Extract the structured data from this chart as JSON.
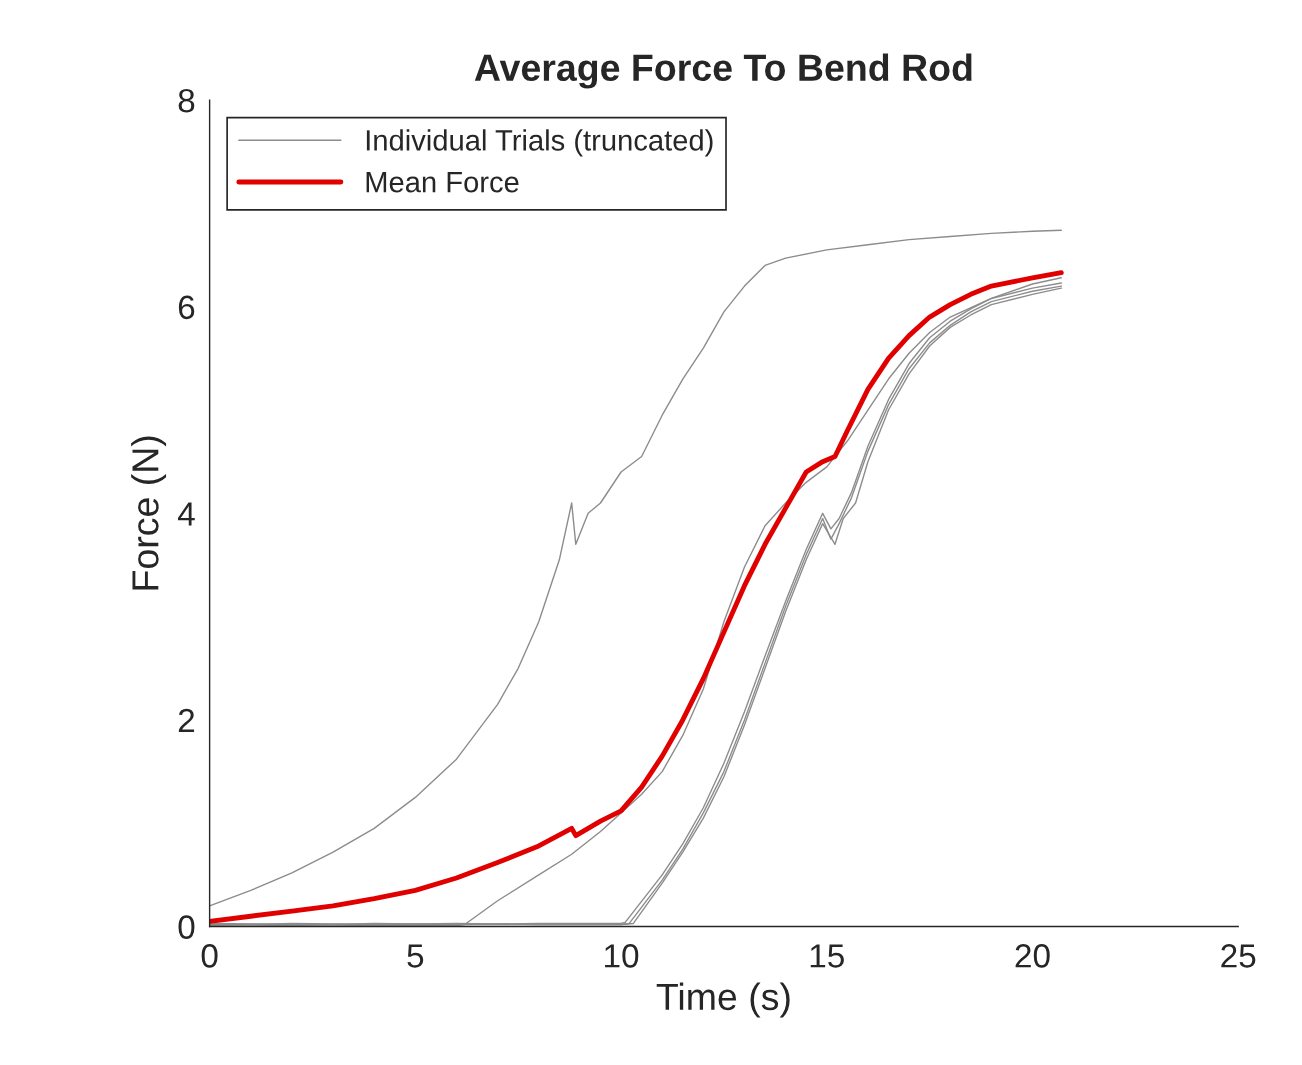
{
  "chart_data": {
    "type": "line",
    "title": "Average Force To Bend Rod",
    "xlabel": "Time (s)",
    "ylabel": "Force (N)",
    "xlim": [
      0,
      25
    ],
    "ylim": [
      0,
      8
    ],
    "xticks": [
      0,
      5,
      10,
      15,
      20,
      25
    ],
    "yticks": [
      0,
      2,
      4,
      6,
      8
    ],
    "grid": false,
    "legend": "top left",
    "marker": "none",
    "line_style": "solid",
    "series": [
      {
        "name": "Individual Trials (truncated)",
        "color": "#8c8c8c",
        "x": [
          0,
          1,
          2,
          3,
          4,
          5,
          6,
          7,
          7.5,
          8,
          8.5,
          8.8,
          8.9,
          9.2,
          9.5,
          10,
          10.5,
          11,
          11.5,
          12,
          12.5,
          13,
          13.5,
          14,
          15,
          16,
          17,
          18,
          19,
          20,
          20.7
        ],
        "values": [
          0.2,
          0.35,
          0.52,
          0.72,
          0.95,
          1.25,
          1.62,
          2.15,
          2.5,
          2.95,
          3.55,
          4.1,
          3.7,
          4.0,
          4.1,
          4.4,
          4.55,
          4.95,
          5.3,
          5.6,
          5.95,
          6.2,
          6.4,
          6.47,
          6.55,
          6.6,
          6.65,
          6.68,
          6.71,
          6.73,
          6.74
        ]
      },
      {
        "color": "#8c8c8c",
        "x": [
          0,
          2,
          4,
          6,
          6.2,
          7,
          8,
          8.8,
          9.5,
          10,
          10.5,
          11,
          11.5,
          12,
          12.5,
          13,
          13.5,
          14,
          14.5,
          15,
          15.5,
          16,
          16.5,
          17,
          17.5,
          18,
          19,
          20,
          20.7
        ],
        "values": [
          0.02,
          0.02,
          0.01,
          0.01,
          0.02,
          0.25,
          0.5,
          0.7,
          0.92,
          1.1,
          1.28,
          1.5,
          1.85,
          2.3,
          2.95,
          3.48,
          3.88,
          4.1,
          4.3,
          4.45,
          4.7,
          5.0,
          5.3,
          5.55,
          5.75,
          5.9,
          6.08,
          6.22,
          6.28
        ]
      },
      {
        "color": "#8c8c8c",
        "x": [
          0,
          2,
          4,
          6,
          8,
          10,
          10.2,
          11,
          11.5,
          12,
          12.5,
          13,
          13.5,
          14,
          14.5,
          14.9,
          15.1,
          15.3,
          15.6,
          16,
          16.5,
          17,
          17.5,
          18,
          18.5,
          19,
          20,
          20.7
        ],
        "values": [
          0.03,
          0.02,
          0.02,
          0.03,
          0.02,
          0.02,
          0.03,
          0.45,
          0.75,
          1.1,
          1.5,
          2.0,
          2.55,
          3.1,
          3.6,
          3.95,
          3.75,
          3.9,
          4.15,
          4.6,
          5.05,
          5.4,
          5.65,
          5.82,
          5.95,
          6.05,
          6.15,
          6.2
        ]
      },
      {
        "color": "#8c8c8c",
        "x": [
          0,
          2,
          4,
          6,
          8,
          10,
          10.1,
          11,
          11.5,
          12,
          12.5,
          13,
          13.5,
          14,
          14.5,
          14.9,
          15.1,
          15.3,
          15.6,
          16,
          16.5,
          17,
          17.5,
          18,
          18.5,
          19,
          20,
          20.7
        ],
        "values": [
          0.01,
          0.03,
          0.02,
          0.02,
          0.03,
          0.03,
          0.04,
          0.5,
          0.8,
          1.15,
          1.58,
          2.08,
          2.62,
          3.15,
          3.65,
          4.0,
          3.85,
          3.95,
          4.2,
          4.65,
          5.1,
          5.45,
          5.7,
          5.86,
          5.98,
          6.08,
          6.18,
          6.23
        ]
      },
      {
        "color": "#8c8c8c",
        "x": [
          0,
          2,
          4,
          6,
          8,
          10,
          10.3,
          11,
          11.5,
          12,
          12.5,
          13,
          13.5,
          14,
          14.5,
          14.9,
          15.2,
          15.4,
          15.7,
          16,
          16.5,
          17,
          17.5,
          18,
          18.5,
          19,
          20,
          20.7
        ],
        "values": [
          0.02,
          0.01,
          0.03,
          0.02,
          0.02,
          0.02,
          0.03,
          0.42,
          0.72,
          1.05,
          1.45,
          1.95,
          2.5,
          3.05,
          3.55,
          3.9,
          3.7,
          3.95,
          4.1,
          4.5,
          5.0,
          5.35,
          5.62,
          5.8,
          5.92,
          6.02,
          6.12,
          6.18
        ]
      },
      {
        "name": "Mean Force",
        "color": "#e00000",
        "x": [
          0,
          1,
          2,
          3,
          4,
          5,
          6,
          7,
          8,
          8.8,
          8.9,
          9.5,
          10,
          10.5,
          11,
          11.5,
          12,
          12.5,
          13,
          13.5,
          14,
          14.5,
          14.9,
          15.2,
          15.5,
          16,
          16.5,
          17,
          17.5,
          18,
          18.5,
          19,
          20,
          20.7
        ],
        "values": [
          0.05,
          0.1,
          0.15,
          0.2,
          0.27,
          0.35,
          0.47,
          0.62,
          0.78,
          0.95,
          0.88,
          1.02,
          1.12,
          1.35,
          1.65,
          2.0,
          2.4,
          2.85,
          3.3,
          3.7,
          4.05,
          4.4,
          4.5,
          4.55,
          4.8,
          5.2,
          5.5,
          5.72,
          5.9,
          6.02,
          6.12,
          6.2,
          6.28,
          6.33
        ]
      }
    ]
  }
}
